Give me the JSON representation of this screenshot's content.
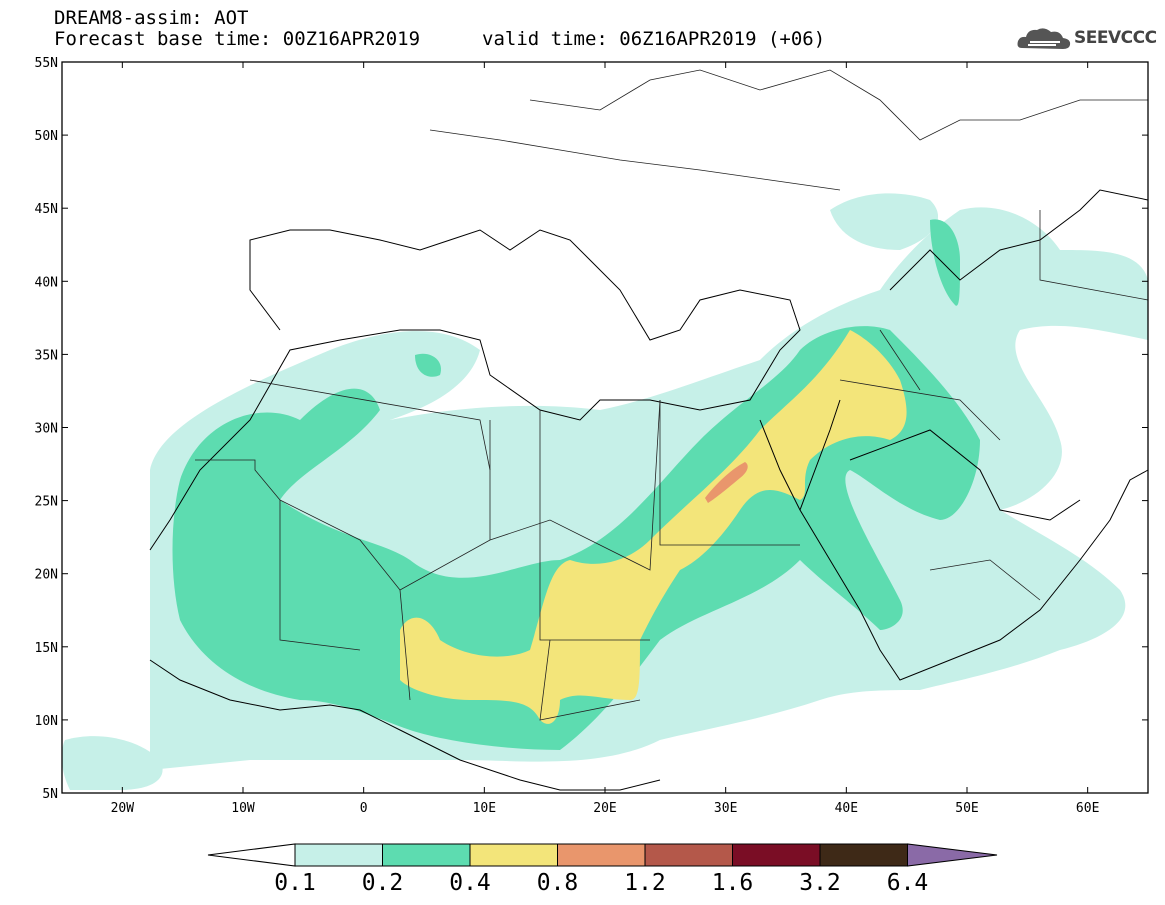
{
  "header": {
    "title_line1": "DREAM8-assim: AOT",
    "base_time": "Forecast base time: 00Z16APR2019",
    "valid_time": "valid time: 06Z16APR2019 (+06)",
    "logo_text": "SEEVCCC",
    "logo_icon": "cloud-icon"
  },
  "map": {
    "lon_range": [
      -25,
      65
    ],
    "lat_range": [
      5,
      55
    ],
    "lat_labels": [
      "55N",
      "50N",
      "45N",
      "40N",
      "35N",
      "30N",
      "25N",
      "20N",
      "15N",
      "10N",
      "5N"
    ],
    "lon_labels": [
      "20W",
      "10W",
      "0",
      "10E",
      "20E",
      "30E",
      "40E",
      "50E",
      "60E"
    ],
    "variable": "AOT"
  },
  "colorbar": {
    "levels": [
      "0.1",
      "0.2",
      "0.4",
      "0.8",
      "1.2",
      "1.6",
      "3.2",
      "6.4"
    ],
    "colors": [
      "#ffffff",
      "#c6f0e8",
      "#5ddcb0",
      "#f3e57a",
      "#e9966c",
      "#b4584a",
      "#7a0d25",
      "#3e2917",
      "#8a6aa7"
    ]
  }
}
